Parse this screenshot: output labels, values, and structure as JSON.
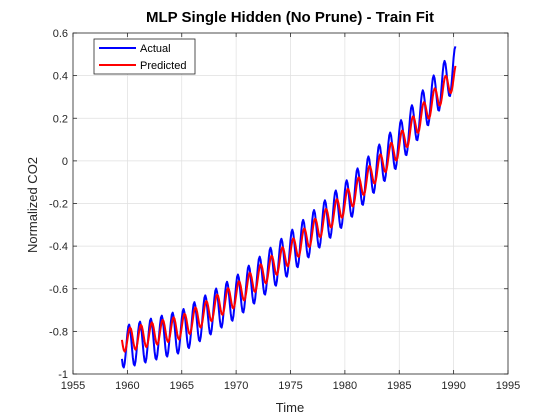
{
  "chart_data": {
    "type": "line",
    "title": "MLP Single Hidden (No Prune) - Train Fit",
    "xlabel": "Time",
    "ylabel": "Normalized CO2",
    "xlim": [
      1955,
      1995
    ],
    "ylim": [
      -1,
      0.6
    ],
    "xticks": [
      "1955",
      "1960",
      "1965",
      "1970",
      "1975",
      "1980",
      "1985",
      "1990",
      "1995"
    ],
    "yticks": [
      "-1",
      "-0.8",
      "-0.6",
      "-0.4",
      "-0.2",
      "0",
      "0.2",
      "0.4",
      "0.6"
    ],
    "grid": true,
    "legend_position": "top-left",
    "x_start": 1959.5,
    "x_end": 1990.2,
    "samples_per_year": 12,
    "series": [
      {
        "name": "Actual",
        "color": "#0000ff",
        "trend_points": [
          [
            1959.5,
            -0.87
          ],
          [
            1960,
            -0.87
          ],
          [
            1965,
            -0.8
          ],
          [
            1970,
            -0.64
          ],
          [
            1975,
            -0.43
          ],
          [
            1980,
            -0.2
          ],
          [
            1985,
            0.08
          ],
          [
            1988,
            0.29
          ],
          [
            1990.2,
            0.44
          ]
        ],
        "seasonal_amplitude": 0.1,
        "seasonal_phase": 0.15
      },
      {
        "name": "Predicted",
        "color": "#ff0000",
        "trend_points": [
          [
            1959.5,
            -0.84
          ],
          [
            1960,
            -0.84
          ],
          [
            1965,
            -0.78
          ],
          [
            1970,
            -0.63
          ],
          [
            1975,
            -0.43
          ],
          [
            1980,
            -0.2
          ],
          [
            1985,
            0.07
          ],
          [
            1988,
            0.27
          ],
          [
            1990.2,
            0.4
          ]
        ],
        "seasonal_amplitude": 0.055,
        "seasonal_phase": 0.25
      }
    ]
  }
}
